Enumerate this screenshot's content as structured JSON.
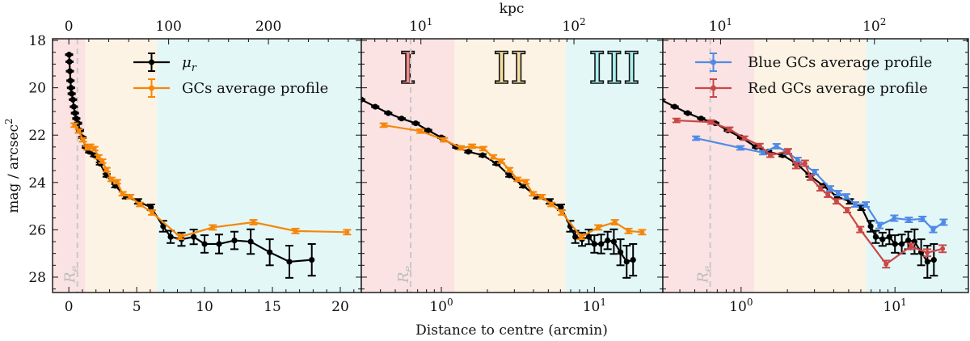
{
  "chart_data": {
    "type": "line",
    "xlabel": "Distance to centre (arcmin)",
    "ylabel": "mag / arcsec",
    "ylabel_sup": "2",
    "ylim": [
      28.65,
      17.93
    ],
    "yticks": [
      18,
      20,
      22,
      24,
      26,
      28
    ],
    "top_axis": {
      "label": "kpc",
      "kpc_per_arcmin": 13.6
    },
    "regions": [
      {
        "label": "I",
        "from": 0,
        "to": 1.22,
        "color": "#fbe3e3",
        "label_color": "#f08a8a"
      },
      {
        "label": "II",
        "from": 1.22,
        "to": 6.5,
        "color": "#fdf3e4",
        "label_color": "#f6dfa0"
      },
      {
        "label": "III",
        "from": 6.5,
        "to": 40,
        "color": "#e3f7f7",
        "label_color": "#a8f0ef"
      }
    ],
    "effective_radius": {
      "label": "R",
      "sub": "e",
      "value": 0.63,
      "color": "#c8c8c8"
    },
    "series": {
      "mu_r": {
        "name": "μ",
        "name_sub": "r",
        "color": "#000000",
        "points": [
          [
            0.02,
            18.6,
            0.02
          ],
          [
            0.05,
            18.9,
            0.02
          ],
          [
            0.08,
            19.3,
            0.02
          ],
          [
            0.12,
            19.7,
            0.02
          ],
          [
            0.16,
            20.0,
            0.02
          ],
          [
            0.21,
            20.25,
            0.02
          ],
          [
            0.3,
            20.5,
            0.02
          ],
          [
            0.37,
            20.8,
            0.02
          ],
          [
            0.45,
            21.07,
            0.02
          ],
          [
            0.55,
            21.3,
            0.02
          ],
          [
            0.68,
            21.5,
            0.03
          ],
          [
            0.82,
            21.8,
            0.03
          ],
          [
            1.0,
            22.1,
            0.03
          ],
          [
            1.25,
            22.5,
            0.04
          ],
          [
            1.5,
            22.7,
            0.04
          ],
          [
            1.86,
            22.85,
            0.05
          ],
          [
            2.29,
            23.2,
            0.05
          ],
          [
            2.78,
            23.7,
            0.06
          ],
          [
            3.42,
            24.14,
            0.07
          ],
          [
            4.2,
            24.6,
            0.08
          ],
          [
            5.1,
            24.8,
            0.1
          ],
          [
            6.05,
            25.05,
            0.12
          ],
          [
            6.95,
            25.85,
            0.23
          ],
          [
            7.5,
            26.3,
            0.26
          ],
          [
            8.3,
            26.4,
            0.28
          ],
          [
            9.2,
            26.3,
            0.31
          ],
          [
            10.0,
            26.6,
            0.37
          ],
          [
            11.07,
            26.6,
            0.4
          ],
          [
            12.2,
            26.45,
            0.37
          ],
          [
            13.4,
            26.5,
            0.52
          ],
          [
            14.8,
            26.95,
            0.55
          ],
          [
            16.25,
            27.35,
            0.68
          ],
          [
            17.9,
            27.27,
            0.67
          ]
        ]
      },
      "gcs": {
        "name": "GCs average profile",
        "color": "#f5870a",
        "points": [
          [
            0.42,
            21.58,
            0.08
          ],
          [
            0.73,
            21.83,
            0.08
          ],
          [
            1.04,
            22.2,
            0.08
          ],
          [
            1.34,
            22.54,
            0.08
          ],
          [
            1.59,
            22.47,
            0.08
          ],
          [
            1.88,
            22.57,
            0.08
          ],
          [
            2.18,
            22.92,
            0.08
          ],
          [
            2.46,
            23.1,
            0.08
          ],
          [
            2.78,
            23.46,
            0.08
          ],
          [
            3.14,
            23.87,
            0.08
          ],
          [
            3.55,
            23.97,
            0.08
          ],
          [
            3.96,
            24.48,
            0.08
          ],
          [
            4.53,
            24.6,
            0.08
          ],
          [
            5.24,
            24.93,
            0.08
          ],
          [
            6.13,
            25.27,
            0.1
          ],
          [
            8.2,
            26.3,
            0.1
          ],
          [
            10.6,
            25.9,
            0.1
          ],
          [
            13.6,
            25.68,
            0.1
          ],
          [
            16.7,
            26.05,
            0.1
          ],
          [
            20.5,
            26.1,
            0.1
          ]
        ]
      },
      "blue_gcs": {
        "name": "Blue GCs average profile",
        "color": "#4f8ae6",
        "points": [
          [
            0.51,
            22.13,
            0.08
          ],
          [
            0.99,
            22.54,
            0.08
          ],
          [
            1.39,
            22.74,
            0.08
          ],
          [
            1.7,
            22.47,
            0.1
          ],
          [
            1.99,
            22.71,
            0.1
          ],
          [
            2.33,
            23.05,
            0.1
          ],
          [
            3.01,
            23.56,
            0.1
          ],
          [
            3.79,
            24.25,
            0.1
          ],
          [
            4.28,
            24.45,
            0.1
          ],
          [
            4.83,
            24.59,
            0.1
          ],
          [
            5.52,
            24.93,
            0.1
          ],
          [
            6.46,
            24.93,
            0.1
          ],
          [
            7.94,
            25.82,
            0.12
          ],
          [
            9.9,
            25.51,
            0.12
          ],
          [
            12.3,
            25.58,
            0.1
          ],
          [
            15.1,
            25.54,
            0.1
          ],
          [
            17.7,
            25.99,
            0.12
          ],
          [
            20.7,
            25.68,
            0.12
          ]
        ]
      },
      "red_gcs": {
        "name": "Red GCs average profile",
        "color": "#c94747",
        "points": [
          [
            0.38,
            21.38,
            0.08
          ],
          [
            0.64,
            21.45,
            0.08
          ],
          [
            0.84,
            21.75,
            0.08
          ],
          [
            1.05,
            22.13,
            0.08
          ],
          [
            1.32,
            22.44,
            0.08
          ],
          [
            1.55,
            22.85,
            0.08
          ],
          [
            2.02,
            22.68,
            0.1
          ],
          [
            2.28,
            23.29,
            0.12
          ],
          [
            2.6,
            23.19,
            0.12
          ],
          [
            2.83,
            23.8,
            0.1
          ],
          [
            3.28,
            24.25,
            0.1
          ],
          [
            3.66,
            24.52,
            0.1
          ],
          [
            4.17,
            24.8,
            0.1
          ],
          [
            4.89,
            25.17,
            0.1
          ],
          [
            5.95,
            25.99,
            0.12
          ],
          [
            8.76,
            27.45,
            0.15
          ],
          [
            12.7,
            26.7,
            0.12
          ],
          [
            16.2,
            26.97,
            0.15
          ],
          [
            20.4,
            26.8,
            0.15
          ]
        ]
      }
    },
    "panels": [
      {
        "xscale": "linear",
        "xlim": [
          -1.2,
          21.55
        ],
        "xticks": [
          0,
          5,
          10,
          15,
          20
        ],
        "top_ticks": [
          0,
          100,
          200
        ],
        "series": [
          "mu_r",
          "gcs"
        ],
        "legend": [
          "mu_r",
          "gcs"
        ],
        "show_region_labels": false
      },
      {
        "xscale": "log",
        "xlim": [
          0.3,
          28
        ],
        "xticks": [
          1,
          10
        ],
        "top_ticks": [
          10,
          100
        ],
        "series": [
          "mu_r",
          "gcs"
        ],
        "legend": [],
        "show_region_labels": true
      },
      {
        "xscale": "log",
        "xlim": [
          0.31,
          30
        ],
        "xticks": [
          1,
          10
        ],
        "top_ticks": [
          10,
          100
        ],
        "series": [
          "mu_r",
          "blue_gcs",
          "red_gcs"
        ],
        "legend": [
          "blue_gcs",
          "red_gcs"
        ],
        "show_region_labels": false
      }
    ]
  }
}
